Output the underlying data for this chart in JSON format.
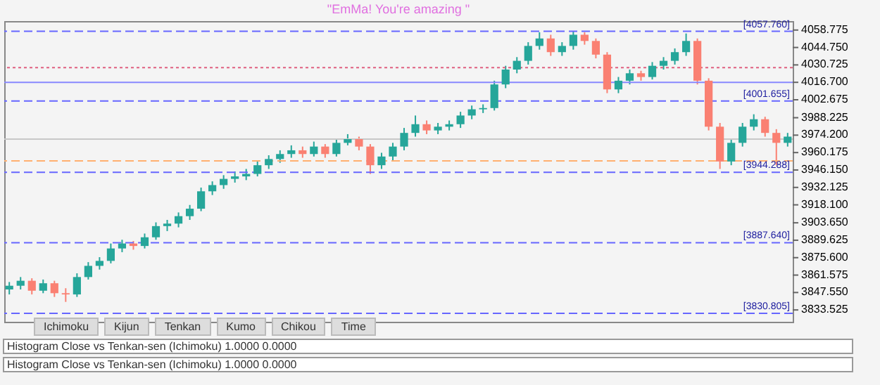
{
  "chart_data": {
    "type": "candlestick",
    "title": "\"EmMa! You're amazing \"",
    "categories": [
      null,
      null,
      null,
      null,
      null,
      null,
      null,
      null,
      null,
      null,
      null,
      null,
      null,
      null,
      null,
      null,
      null,
      null,
      null,
      null,
      null,
      null,
      null,
      null,
      null,
      null,
      null,
      null,
      null,
      null,
      null,
      null,
      null,
      null,
      null,
      null,
      null,
      null,
      null,
      null,
      null,
      null,
      null,
      null,
      null,
      null,
      null,
      null,
      null,
      null,
      null,
      null,
      null,
      null,
      null,
      null,
      null,
      null,
      null,
      null,
      null,
      null,
      null,
      null,
      null,
      null,
      null,
      null,
      null,
      null
    ],
    "ohlc": [
      [
        3850,
        3856,
        3846,
        3853
      ],
      [
        3853,
        3860,
        3850,
        3857
      ],
      [
        3857,
        3859,
        3846,
        3849
      ],
      [
        3849,
        3858,
        3847,
        3855
      ],
      [
        3855,
        3857,
        3844,
        3847
      ],
      [
        3847,
        3851,
        3840,
        3846
      ],
      [
        3846,
        3863,
        3844,
        3860
      ],
      [
        3860,
        3872,
        3858,
        3869
      ],
      [
        3869,
        3876,
        3866,
        3873
      ],
      [
        3873,
        3887,
        3871,
        3883
      ],
      [
        3883,
        3890,
        3880,
        3887
      ],
      [
        3887,
        3889,
        3882,
        3885
      ],
      [
        3885,
        3895,
        3883,
        3892
      ],
      [
        3892,
        3904,
        3890,
        3901
      ],
      [
        3901,
        3906,
        3897,
        3903
      ],
      [
        3903,
        3912,
        3900,
        3909
      ],
      [
        3909,
        3918,
        3906,
        3915
      ],
      [
        3915,
        3932,
        3913,
        3929
      ],
      [
        3929,
        3937,
        3926,
        3934
      ],
      [
        3934,
        3942,
        3931,
        3939
      ],
      [
        3939,
        3945,
        3936,
        3941
      ],
      [
        3941,
        3947,
        3938,
        3943
      ],
      [
        3943,
        3953,
        3941,
        3950
      ],
      [
        3950,
        3958,
        3947,
        3955
      ],
      [
        3955,
        3962,
        3952,
        3959
      ],
      [
        3959,
        3966,
        3956,
        3962
      ],
      [
        3962,
        3965,
        3956,
        3959
      ],
      [
        3959,
        3969,
        3957,
        3965
      ],
      [
        3965,
        3967,
        3956,
        3959
      ],
      [
        3959,
        3971,
        3957,
        3968
      ],
      [
        3968,
        3975,
        3966,
        3971
      ],
      [
        3971,
        3973,
        3962,
        3965
      ],
      [
        3965,
        3967,
        3943,
        3950
      ],
      [
        3950,
        3960,
        3947,
        3957
      ],
      [
        3957,
        3968,
        3954,
        3965
      ],
      [
        3965,
        3980,
        3962,
        3976
      ],
      [
        3976,
        3990,
        3973,
        3983
      ],
      [
        3983,
        3986,
        3975,
        3978
      ],
      [
        3978,
        3984,
        3975,
        3981
      ],
      [
        3981,
        3986,
        3978,
        3983
      ],
      [
        3983,
        3993,
        3980,
        3990
      ],
      [
        3990,
        3998,
        3987,
        3995
      ],
      [
        3995,
        3999,
        3992,
        3996
      ],
      [
        3996,
        4018,
        3994,
        4015
      ],
      [
        4015,
        4030,
        4012,
        4027
      ],
      [
        4027,
        4037,
        4024,
        4034
      ],
      [
        4034,
        4049,
        4031,
        4046
      ],
      [
        4046,
        4057,
        4043,
        4052
      ],
      [
        4052,
        4055,
        4038,
        4041
      ],
      [
        4041,
        4049,
        4038,
        4046
      ],
      [
        4046,
        4058,
        4043,
        4055
      ],
      [
        4055,
        4057,
        4047,
        4050
      ],
      [
        4050,
        4052,
        4036,
        4039
      ],
      [
        4039,
        4041,
        4008,
        4011
      ],
      [
        4011,
        4021,
        4008,
        4018
      ],
      [
        4018,
        4027,
        4015,
        4024
      ],
      [
        4024,
        4026,
        4018,
        4021
      ],
      [
        4021,
        4033,
        4019,
        4030
      ],
      [
        4030,
        4037,
        4027,
        4034
      ],
      [
        4034,
        4044,
        4031,
        4041
      ],
      [
        4041,
        4056,
        4038,
        4050
      ],
      [
        4050,
        4052,
        4015,
        4018
      ],
      [
        4018,
        4020,
        3978,
        3981
      ],
      [
        3981,
        3984,
        3947,
        3953
      ],
      [
        3953,
        3971,
        3950,
        3968
      ],
      [
        3968,
        3984,
        3965,
        3981
      ],
      [
        3981,
        3991,
        3978,
        3987
      ],
      [
        3987,
        3989,
        3973,
        3976
      ],
      [
        3976,
        3979,
        3950,
        3968
      ],
      [
        3968,
        3976,
        3965,
        3973
      ]
    ],
    "colors": [
      "#26a69a",
      "#26a69a",
      "#fa8072",
      "#26a69a",
      "#fa8072",
      "#fa8072",
      "#26a69a",
      "#26a69a",
      "#26a69a",
      "#26a69a",
      "#26a69a",
      "#fa8072",
      "#26a69a",
      "#26a69a",
      "#26a69a",
      "#26a69a",
      "#26a69a",
      "#26a69a",
      "#26a69a",
      "#26a69a",
      "#26a69a",
      "#26a69a",
      "#26a69a",
      "#26a69a",
      "#26a69a",
      "#26a69a",
      "#fa8072",
      "#26a69a",
      "#fa8072",
      "#26a69a",
      "#26a69a",
      "#fa8072",
      "#fa8072",
      "#26a69a",
      "#26a69a",
      "#26a69a",
      "#26a69a",
      "#fa8072",
      "#26a69a",
      "#26a69a",
      "#26a69a",
      "#26a69a",
      "#26a69a",
      "#26a69a",
      "#26a69a",
      "#26a69a",
      "#26a69a",
      "#26a69a",
      "#fa8072",
      "#26a69a",
      "#26a69a",
      "#fa8072",
      "#fa8072",
      "#fa8072",
      "#26a69a",
      "#26a69a",
      "#fa8072",
      "#26a69a",
      "#26a69a",
      "#26a69a",
      "#26a69a",
      "#fa8072",
      "#fa8072",
      "#fa8072",
      "#26a69a",
      "#26a69a",
      "#26a69a",
      "#fa8072",
      "#fa8072",
      "#26a69a"
    ],
    "ylim": [
      3824,
      4066
    ],
    "yticks": [
      4058.775,
      {
        "value": 4044.75,
        "label": "4044.750"
      },
      4030.725,
      {
        "value": 4016.7,
        "label": "4016.700"
      },
      4002.675,
      3988.225,
      {
        "value": 3974.2,
        "label": "3974.200"
      },
      3960.175,
      {
        "value": 3946.15,
        "label": "3946.150"
      },
      3932.125,
      {
        "value": 3918.1,
        "label": "3918.100"
      },
      {
        "value": 3903.65,
        "label": "3903.650"
      },
      3889.625,
      {
        "value": 3875.6,
        "label": "3875.600"
      },
      3861.575,
      {
        "value": 3847.55,
        "label": "3847.550"
      },
      3833.525
    ],
    "tick_labels": "y",
    "grid": false,
    "ref_lines": [
      {
        "axis": "y",
        "value": 4057.76,
        "label": "[4057.760]",
        "color": "#6666ff",
        "line_style": "dashed"
      },
      {
        "axis": "y",
        "value": 4028.5,
        "label": null,
        "color": "#e06080",
        "line_style": "dotted"
      },
      {
        "axis": "y",
        "value": 4016.7,
        "label": null,
        "color": "#8888ff",
        "line_style": "solid"
      },
      {
        "axis": "y",
        "value": 4001.655,
        "label": "[4001.655]",
        "color": "#6666ff",
        "line_style": "dashed"
      },
      {
        "axis": "y",
        "value": 3971,
        "label": null,
        "color": "#c8c8c8",
        "line_style": "solid"
      },
      {
        "axis": "y",
        "value": 3953.5,
        "label": null,
        "color": "#ffb070",
        "line_style": "dashed"
      },
      {
        "axis": "y",
        "value": 3944.288,
        "label": "[3944.288]",
        "color": "#6666ff",
        "line_style": "dashed"
      },
      {
        "axis": "y",
        "value": 3887.64,
        "label": "[3887.640]",
        "color": "#6666ff",
        "line_style": "dashed"
      },
      {
        "axis": "y",
        "value": 3830.805,
        "label": "[3830.805]",
        "color": "#6666ff",
        "line_style": "dashed"
      }
    ],
    "annotations": [
      "Ichimoku",
      "Kijun",
      "Tenkan",
      "Kumo",
      "Chikou",
      "Time",
      "Histogram Close vs Tenkan-sen (Ichimoku) 1.0000 0.0000",
      "Histogram Close vs Tenkan-sen (Ichimoku) 1.0000 0.0000"
    ]
  }
}
